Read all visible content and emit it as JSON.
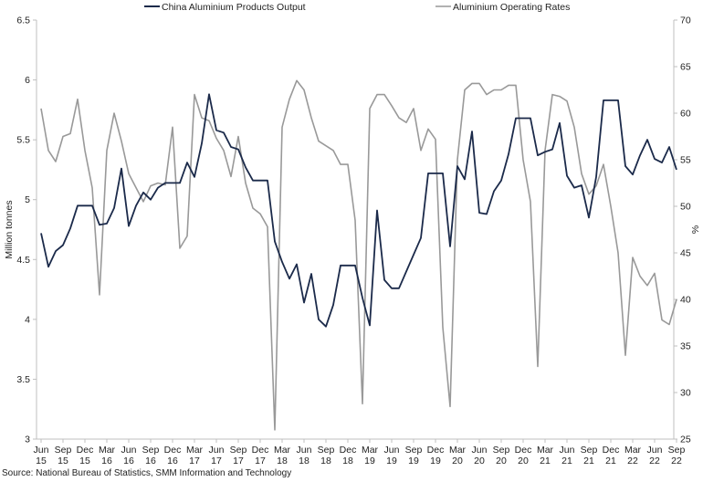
{
  "chart_data": {
    "type": "line",
    "title": "",
    "source": "Source: National Bureau of Statistics, SMM Information and Technology",
    "ylabel_left": "Million tonnes",
    "ylabel_right": "%",
    "ylim_left": [
      3,
      6.5
    ],
    "ylim_right": [
      25,
      70
    ],
    "yticks_left": [
      "3",
      "3.5",
      "4",
      "4.5",
      "5",
      "5.5",
      "6",
      "6.5"
    ],
    "yticks_right": [
      "25",
      "30",
      "35",
      "40",
      "45",
      "50",
      "55",
      "60",
      "65",
      "70"
    ],
    "colors": {
      "output": "#1b2a4a",
      "rates": "#999999",
      "axis": "#bfbfbf"
    },
    "x_tick_labels": [
      {
        "month": "Jun",
        "year": "15"
      },
      {
        "month": "Sep",
        "year": "15"
      },
      {
        "month": "Dec",
        "year": "15"
      },
      {
        "month": "Mar",
        "year": "16"
      },
      {
        "month": "Jun",
        "year": "16"
      },
      {
        "month": "Sep",
        "year": "16"
      },
      {
        "month": "Dec",
        "year": "16"
      },
      {
        "month": "Mar",
        "year": "17"
      },
      {
        "month": "Jun",
        "year": "17"
      },
      {
        "month": "Sep",
        "year": "17"
      },
      {
        "month": "Dec",
        "year": "17"
      },
      {
        "month": "Mar",
        "year": "18"
      },
      {
        "month": "Jun",
        "year": "18"
      },
      {
        "month": "Sep",
        "year": "18"
      },
      {
        "month": "Dec",
        "year": "18"
      },
      {
        "month": "Mar",
        "year": "19"
      },
      {
        "month": "Jun",
        "year": "19"
      },
      {
        "month": "Sep",
        "year": "19"
      },
      {
        "month": "Dec",
        "year": "19"
      },
      {
        "month": "Mar",
        "year": "20"
      },
      {
        "month": "Jun",
        "year": "20"
      },
      {
        "month": "Sep",
        "year": "20"
      },
      {
        "month": "Dec",
        "year": "20"
      },
      {
        "month": "Mar",
        "year": "21"
      },
      {
        "month": "Jun",
        "year": "21"
      },
      {
        "month": "Sep",
        "year": "21"
      },
      {
        "month": "Dec",
        "year": "21"
      },
      {
        "month": "Mar",
        "year": "22"
      },
      {
        "month": "Jun",
        "year": "22"
      },
      {
        "month": "Sep",
        "year": "22"
      }
    ],
    "x_start": "Jun 2015",
    "x_end": "Oct 2022",
    "series": [
      {
        "name": "China Aluminium Products Output",
        "axis": "left",
        "values": [
          4.72,
          4.44,
          4.57,
          4.62,
          4.76,
          4.95,
          4.95,
          4.95,
          4.79,
          4.8,
          4.93,
          5.26,
          4.78,
          4.95,
          5.06,
          5.0,
          5.1,
          5.14,
          5.14,
          5.14,
          5.31,
          5.19,
          5.47,
          5.88,
          5.58,
          5.56,
          5.44,
          5.42,
          5.27,
          5.16,
          5.16,
          5.16,
          4.65,
          4.48,
          4.34,
          4.46,
          4.14,
          4.38,
          4.0,
          3.94,
          4.12,
          4.45,
          4.45,
          4.45,
          4.18,
          3.95,
          4.91,
          4.33,
          4.26,
          4.26,
          4.4,
          4.54,
          4.68,
          5.22,
          5.22,
          5.22,
          4.61,
          5.28,
          5.17,
          5.57,
          4.89,
          4.88,
          5.07,
          5.16,
          5.38,
          5.68,
          5.68,
          5.68,
          5.37,
          5.4,
          5.42,
          5.64,
          5.2,
          5.1,
          5.12,
          4.85,
          5.19,
          5.83,
          5.83,
          5.83,
          5.28,
          5.21,
          5.37,
          5.5,
          5.34,
          5.31,
          5.44,
          5.25
        ]
      },
      {
        "name": "Aluminium Operating Rates",
        "axis": "right",
        "values": [
          60.5,
          56.0,
          54.8,
          57.5,
          57.8,
          61.5,
          56.0,
          52.0,
          40.5,
          56.0,
          60.0,
          57.0,
          53.5,
          52.0,
          50.5,
          52.2,
          52.5,
          52.3,
          58.5,
          45.5,
          46.8,
          62.0,
          59.5,
          59.2,
          57.3,
          56.0,
          53.2,
          57.5,
          52.5,
          49.8,
          49.2,
          47.8,
          26.0,
          58.5,
          61.5,
          63.5,
          62.5,
          59.5,
          57.0,
          56.5,
          56.0,
          54.5,
          54.5,
          48.5,
          28.8,
          60.5,
          62.0,
          62.0,
          60.8,
          59.5,
          59.0,
          60.5,
          56.0,
          58.3,
          57.2,
          37.0,
          28.5,
          55.0,
          62.5,
          63.2,
          63.2,
          62.0,
          62.5,
          62.5,
          63.0,
          63.0,
          55.0,
          50.5,
          32.8,
          56.0,
          62.0,
          61.8,
          61.3,
          58.5,
          53.5,
          51.3,
          52.2,
          54.5,
          50.0,
          45.0,
          34.0,
          44.5,
          42.5,
          41.5,
          42.8,
          37.8,
          37.3,
          40.0
        ]
      }
    ]
  }
}
